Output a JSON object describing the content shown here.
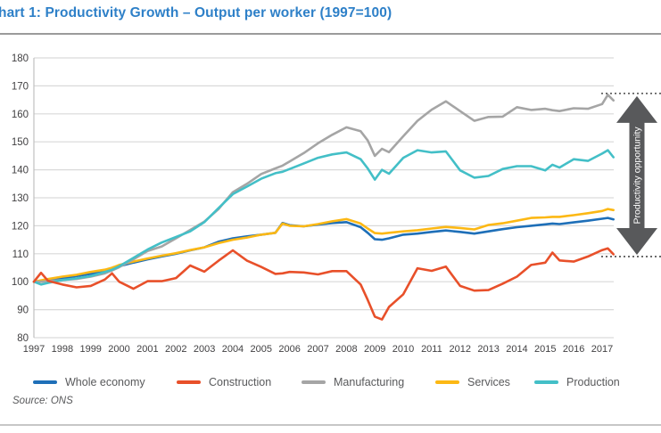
{
  "header": {
    "title": "hart 1: Productivity Growth – Output per worker (1997=100)",
    "title_color": "#2e80c8"
  },
  "footer": {
    "source": "Source: ONS"
  },
  "annotation": {
    "label": "Productivity opportunity",
    "arrow_color": "#58595b",
    "dotted_top_value": 167.3,
    "dotted_bottom_value": 109
  },
  "axis_style": {
    "grid_color": "#d9d9d9",
    "axis_line_color": "#c0c0c0",
    "tick_label_color": "#414042"
  },
  "chart_data": {
    "type": "line",
    "title": "hart 1: Productivity Growth – Output per worker (1997=100)",
    "xlabel": "",
    "ylabel": "",
    "ylim": [
      80,
      180
    ],
    "ytick_step": 10,
    "yticks": [
      80,
      90,
      100,
      110,
      120,
      130,
      140,
      150,
      160,
      170,
      180
    ],
    "xticks": [
      1997,
      1998,
      1999,
      2000,
      2001,
      2002,
      2003,
      2004,
      2005,
      2006,
      2007,
      2008,
      2009,
      2010,
      2011,
      2012,
      2013,
      2014,
      2015,
      2016,
      2017
    ],
    "grid": "horizontal",
    "legend_position": "bottom",
    "x": [
      1997,
      1997.25,
      1997.5,
      1998,
      1998.5,
      1999,
      1999.5,
      1999.75,
      2000,
      2000.5,
      2001,
      2001.5,
      2002,
      2002.5,
      2003,
      2003.5,
      2004,
      2004.5,
      2005,
      2005.5,
      2005.75,
      2006,
      2006.5,
      2007,
      2007.5,
      2008,
      2008.5,
      2008.75,
      2009,
      2009.25,
      2009.5,
      2010,
      2010.5,
      2011,
      2011.5,
      2012,
      2012.5,
      2013,
      2013.5,
      2014,
      2014.5,
      2015,
      2015.25,
      2015.5,
      2016,
      2016.5,
      2017,
      2017.2,
      2017.4
    ],
    "series": [
      {
        "name": "Whole economy",
        "color": "#1e6fb8",
        "values": [
          100,
          100.2,
          100.5,
          101.2,
          102,
          102.8,
          103.8,
          104.5,
          105.5,
          106.8,
          108,
          109,
          110,
          111.2,
          112.3,
          114.3,
          115.5,
          116.2,
          116.8,
          117.5,
          121,
          120.2,
          119.8,
          120.4,
          121,
          121.3,
          119.5,
          117.5,
          115.2,
          115,
          115.5,
          116.8,
          117.2,
          117.8,
          118.3,
          117.8,
          117.2,
          118,
          118.8,
          119.5,
          120,
          120.5,
          120.8,
          120.6,
          121.2,
          121.8,
          122.5,
          122.8,
          122.3
        ]
      },
      {
        "name": "Construction",
        "color": "#e8502a",
        "values": [
          100,
          103.2,
          100.3,
          99,
          98,
          98.5,
          100.8,
          103,
          100,
          97.5,
          100.2,
          100.2,
          101.3,
          105.8,
          103.6,
          107.5,
          111.2,
          107.5,
          105.3,
          102.8,
          103,
          103.5,
          103.3,
          102.6,
          103.8,
          103.8,
          99,
          93.5,
          87.5,
          86.5,
          91,
          95.5,
          104.8,
          103.9,
          105.4,
          98.5,
          96.8,
          97,
          99.3,
          101.8,
          106,
          106.8,
          110.4,
          107.6,
          107.2,
          109,
          111.3,
          111.9,
          109.8
        ]
      },
      {
        "name": "Manufacturing",
        "color": "#a5a5a5",
        "values": [
          100,
          100,
          100.2,
          100.6,
          101,
          101.8,
          103,
          104,
          105.2,
          108,
          111,
          112.6,
          115.5,
          118.5,
          121.5,
          126,
          132,
          135,
          138.5,
          140.5,
          141.5,
          143,
          146,
          149.5,
          152.5,
          155.2,
          153.8,
          150.5,
          145,
          147.5,
          146.3,
          152,
          157.5,
          161.5,
          164.5,
          161,
          157.5,
          158.9,
          159,
          162.4,
          161.4,
          161.8,
          161.3,
          161,
          162,
          161.8,
          163.5,
          166.8,
          164.8
        ]
      },
      {
        "name": "Services",
        "color": "#fcb814",
        "values": [
          100,
          100.5,
          101,
          101.8,
          102.5,
          103.5,
          104.3,
          105,
          106,
          107.2,
          108.3,
          109.3,
          110.2,
          111.3,
          112.3,
          113.8,
          115,
          115.8,
          116.8,
          117.5,
          120.8,
          120,
          119.8,
          120.6,
          121.6,
          122.4,
          120.8,
          119,
          117.4,
          117.2,
          117.5,
          118,
          118.4,
          119,
          119.6,
          119.2,
          118.7,
          120.3,
          120.9,
          121.8,
          122.8,
          123,
          123.2,
          123.2,
          123.8,
          124.5,
          125.3,
          126,
          125.6
        ]
      },
      {
        "name": "Production",
        "color": "#43bfc7",
        "values": [
          100,
          99,
          99.6,
          100.6,
          101.2,
          102,
          103.5,
          104.3,
          105.5,
          108.5,
          111.5,
          114,
          116,
          118,
          121.3,
          126.3,
          131.3,
          134,
          136.8,
          138.8,
          139.3,
          140.3,
          142.3,
          144.3,
          145.5,
          146.2,
          143.8,
          140.5,
          136.5,
          140,
          138.6,
          144.3,
          147,
          146.2,
          146.6,
          139.8,
          137.2,
          137.8,
          140.3,
          141.3,
          141.3,
          139.8,
          141.8,
          140.8,
          143.8,
          143.2,
          145.8,
          147,
          144.5
        ]
      }
    ]
  }
}
